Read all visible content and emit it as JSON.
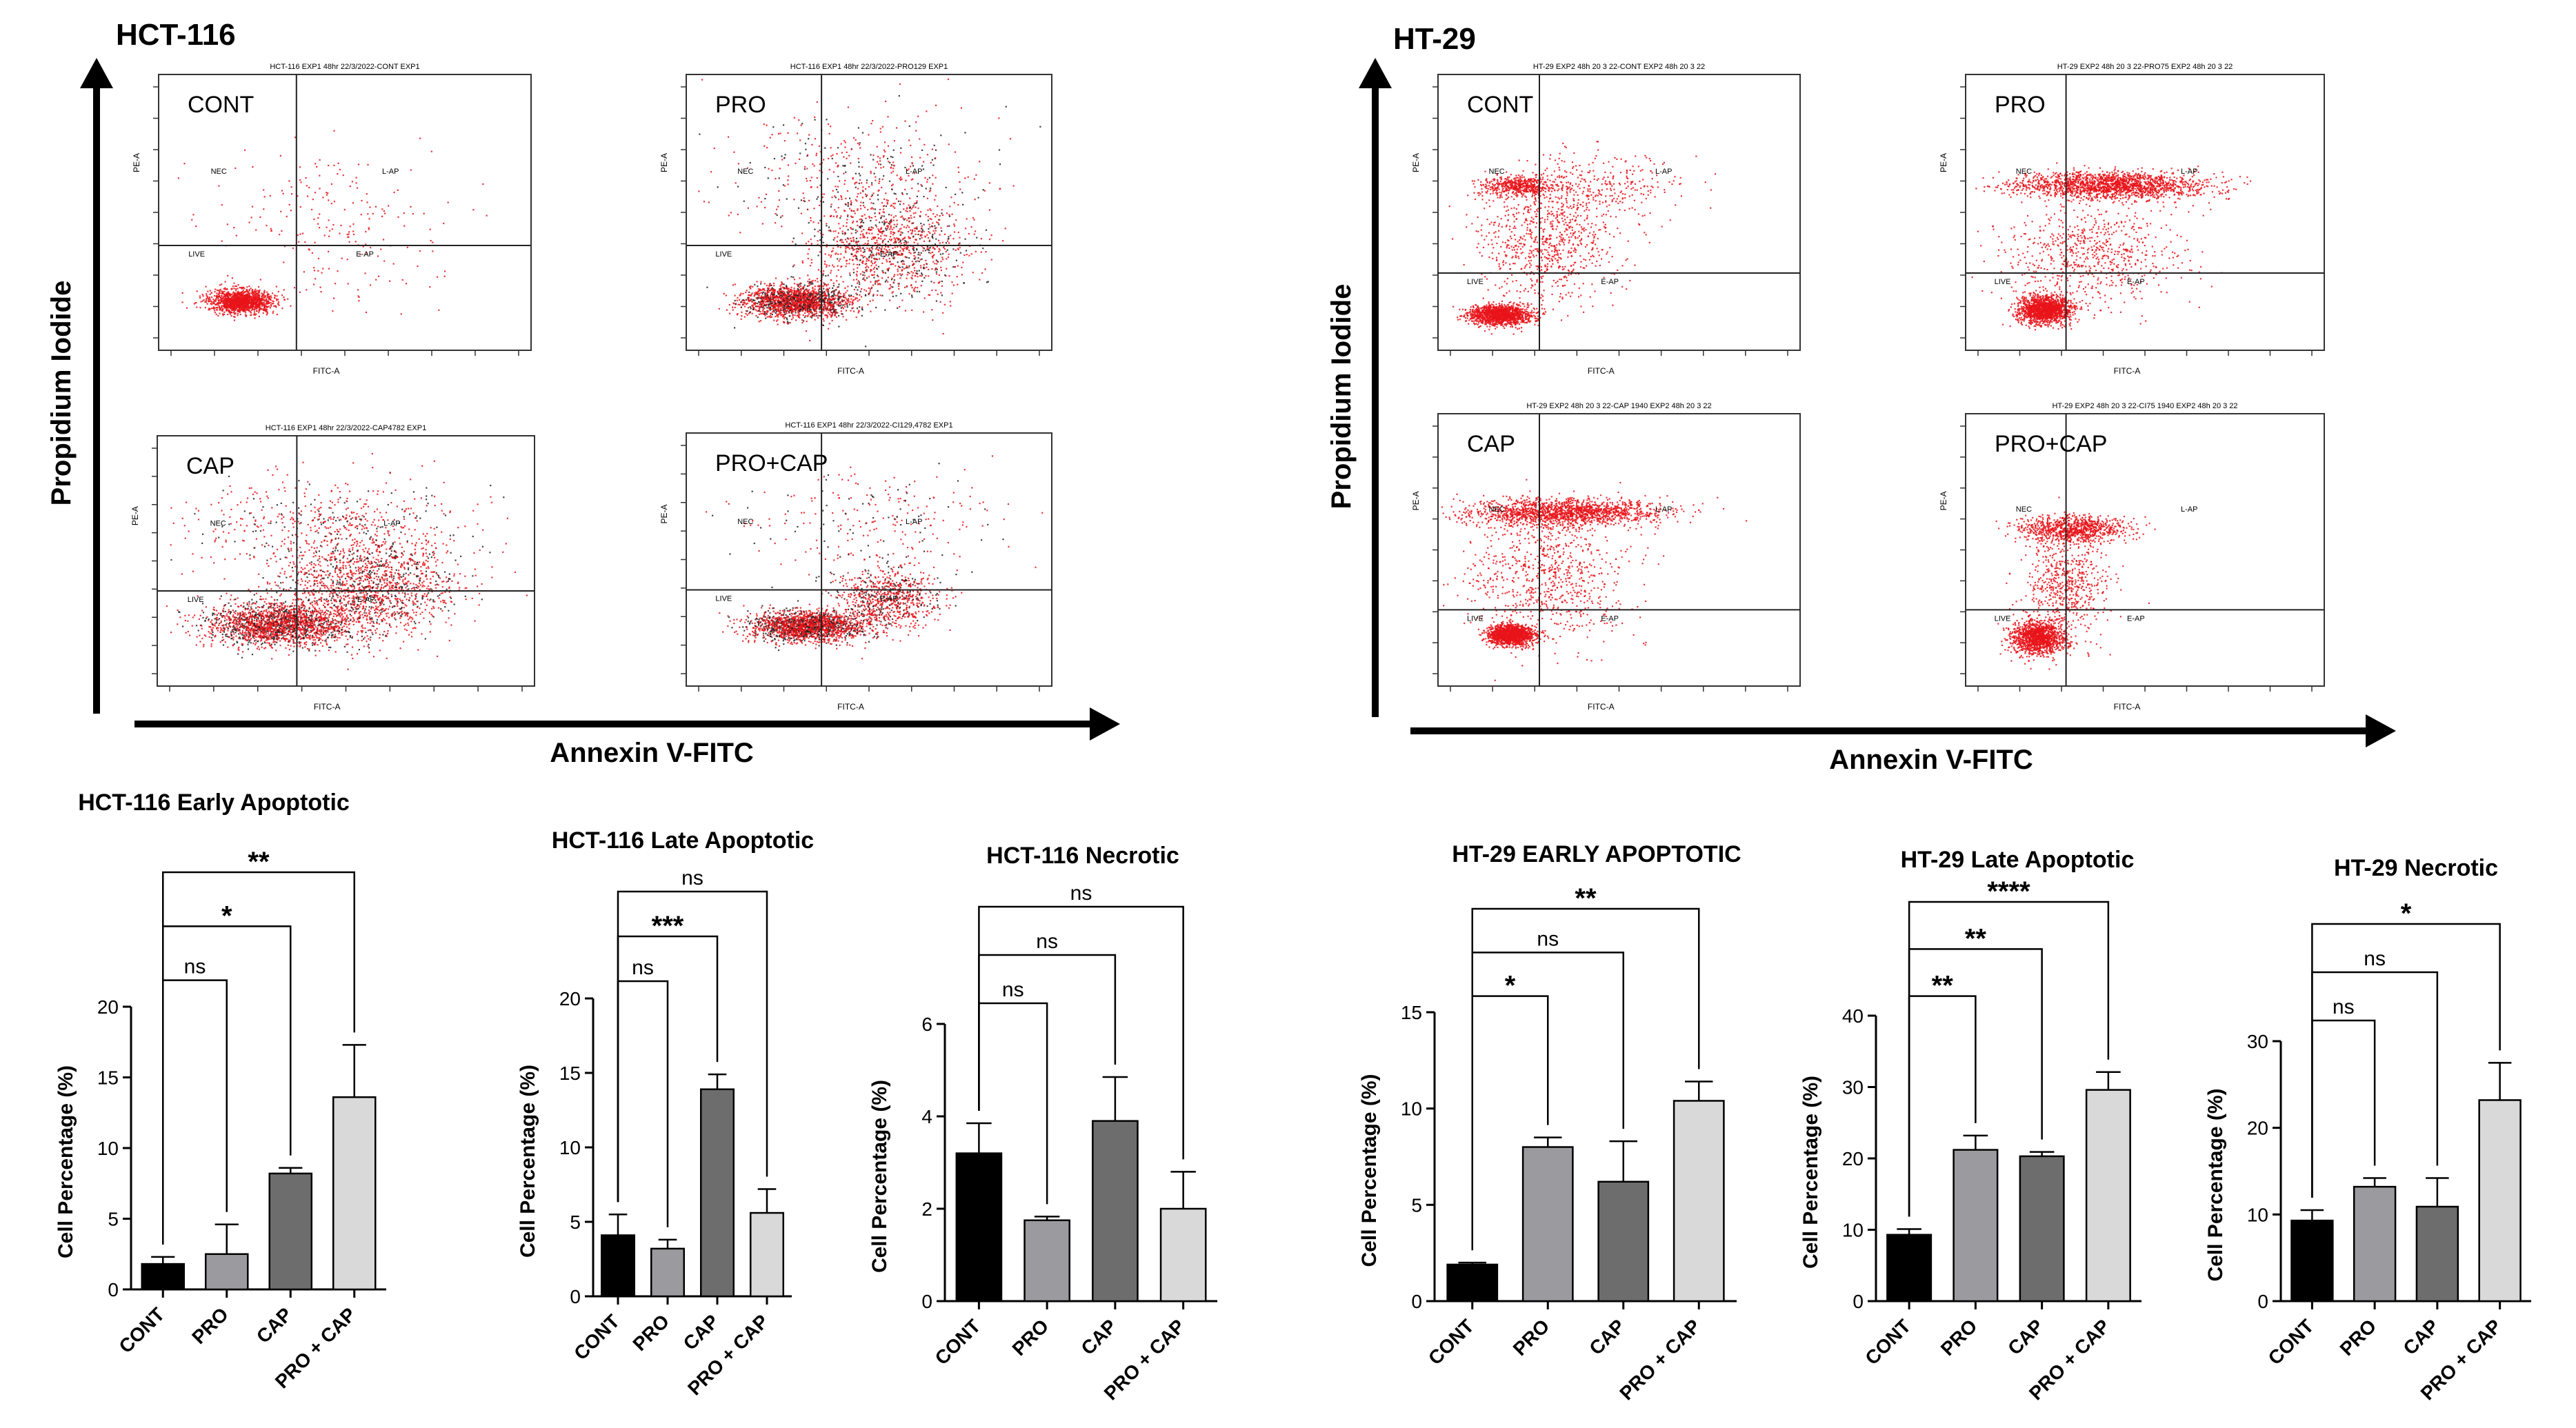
{
  "flow_panels": [
    {
      "cell_line": "HCT-116",
      "y_axis_label": "Propidium Iodide",
      "x_axis_label": "Annexin V-FITC",
      "plots": [
        {
          "label": "CONT",
          "header": "HCT-116 EXP1 48hr 22/3/2022-CONT EXP1",
          "quadrants": [
            "NEC",
            "L-AP",
            "LIVE",
            "E-AP"
          ],
          "x_axis_name": "FITC-A",
          "y_axis_name": "PE-A"
        },
        {
          "label": "PRO",
          "header": "HCT-116 EXP1 48hr 22/3/2022-PRO129 EXP1",
          "quadrants": [
            "NEC",
            "L-AP",
            "LIVE",
            "E-AP"
          ],
          "x_axis_name": "FITC-A",
          "y_axis_name": "PE-A"
        },
        {
          "label": "CAP",
          "header": "HCT-116 EXP1 48hr 22/3/2022-CAP4782 EXP1",
          "quadrants": [
            "NEC",
            "L-AP",
            "LIVE",
            "E-AP"
          ],
          "x_axis_name": "FITC-A",
          "y_axis_name": "PE-A"
        },
        {
          "label": "PRO+CAP",
          "header": "HCT-116 EXP1 48hr 22/3/2022-CI129,4782 EXP1",
          "quadrants": [
            "NEC",
            "L-AP",
            "LIVE",
            "E-AP"
          ],
          "x_axis_name": "FITC-A",
          "y_axis_name": "PE-A"
        }
      ]
    },
    {
      "cell_line": "HT-29",
      "y_axis_label": "Propidium Iodide",
      "x_axis_label": "Annexin V-FITC",
      "plots": [
        {
          "label": "CONT",
          "header": "HT-29 EXP2 48h 20 3 22-CONT EXP2 48h 20 3 22",
          "quadrants": [
            "NEC",
            "L-AP",
            "LIVE",
            "E-AP"
          ],
          "x_axis_name": "FITC-A",
          "y_axis_name": "PE-A"
        },
        {
          "label": "PRO",
          "header": "HT-29 EXP2 48h 20 3 22-PRO75 EXP2 48h 20 3 22",
          "quadrants": [
            "NEC",
            "L-AP",
            "LIVE",
            "E-AP"
          ],
          "x_axis_name": "FITC-A",
          "y_axis_name": "PE-A"
        },
        {
          "label": "CAP",
          "header": "HT-29 EXP2 48h 20 3 22-CAP 1940 EXP2 48h 20 3 22",
          "quadrants": [
            "NEC",
            "L-AP",
            "LIVE",
            "E-AP"
          ],
          "x_axis_name": "FITC-A",
          "y_axis_name": "PE-A"
        },
        {
          "label": "PRO+CAP",
          "header": "HT-29 EXP2 48h 20 3 22-CI75 1940 EXP2 48h 20 3 22",
          "quadrants": [
            "NEC",
            "L-AP",
            "LIVE",
            "E-AP"
          ],
          "x_axis_name": "FITC-A",
          "y_axis_name": "PE-A"
        }
      ]
    }
  ],
  "colors": {
    "dots": "#e8141a",
    "dots_dark": "#222222",
    "bar_cont": "#000000",
    "bar_pro": "#9b9b9f",
    "bar_cap": "#6d6d6d",
    "bar_combo": "#d9d9d9"
  },
  "chart_data": [
    {
      "type": "bar",
      "title": "HCT-116 Early Apoptotic",
      "categories": [
        "CONT",
        "PRO",
        "CAP",
        "PRO + CAP"
      ],
      "values": [
        1.8,
        2.5,
        8.2,
        13.6
      ],
      "errors": [
        0.5,
        2.1,
        0.4,
        3.7
      ],
      "ylabel": "Cell Percentage (%)",
      "ylim": [
        0,
        20
      ],
      "yticks": [
        0,
        5,
        10,
        15,
        20
      ],
      "significance": [
        {
          "from": 0,
          "to": 1,
          "label": "ns"
        },
        {
          "from": 0,
          "to": 2,
          "label": "*"
        },
        {
          "from": 0,
          "to": 3,
          "label": "**"
        }
      ]
    },
    {
      "type": "bar",
      "title": "HCT-116 Late Apoptotic",
      "categories": [
        "CONT",
        "PRO",
        "CAP",
        "PRO + CAP"
      ],
      "values": [
        4.1,
        3.2,
        13.9,
        5.6
      ],
      "errors": [
        1.4,
        0.6,
        1.0,
        1.6
      ],
      "ylabel": "Cell Percentage (%)",
      "ylim": [
        0,
        20
      ],
      "yticks": [
        0,
        5,
        10,
        15,
        20
      ],
      "significance": [
        {
          "from": 0,
          "to": 1,
          "label": "ns"
        },
        {
          "from": 0,
          "to": 2,
          "label": "***"
        },
        {
          "from": 0,
          "to": 3,
          "label": "ns"
        }
      ]
    },
    {
      "type": "bar",
      "title": "HCT-116 Necrotic",
      "categories": [
        "CONT",
        "PRO",
        "CAP",
        "PRO + CAP"
      ],
      "values": [
        3.2,
        1.75,
        3.9,
        2.0
      ],
      "errors": [
        0.65,
        0.08,
        0.95,
        0.8
      ],
      "ylabel": "Cell Percentage (%)",
      "ylim": [
        0,
        6
      ],
      "yticks": [
        0,
        2,
        4,
        6
      ],
      "significance": [
        {
          "from": 0,
          "to": 1,
          "label": "ns"
        },
        {
          "from": 0,
          "to": 2,
          "label": "ns"
        },
        {
          "from": 0,
          "to": 3,
          "label": "ns"
        }
      ]
    },
    {
      "type": "bar",
      "title": "HT-29 EARLY APOPTOTIC",
      "categories": [
        "CONT",
        "PRO",
        "CAP",
        "PRO + CAP"
      ],
      "values": [
        1.9,
        8.0,
        6.2,
        10.4
      ],
      "errors": [
        0.1,
        0.5,
        2.1,
        1.0
      ],
      "ylabel": "Cell Percentage (%)",
      "ylim": [
        0,
        15
      ],
      "yticks": [
        0,
        5,
        10,
        15
      ],
      "significance": [
        {
          "from": 0,
          "to": 1,
          "label": "*"
        },
        {
          "from": 0,
          "to": 2,
          "label": "ns"
        },
        {
          "from": 0,
          "to": 3,
          "label": "**"
        }
      ]
    },
    {
      "type": "bar",
      "title": "HT-29 Late Apoptotic",
      "categories": [
        "CONT",
        "PRO",
        "CAP",
        "PRO + CAP"
      ],
      "values": [
        9.3,
        21.2,
        20.3,
        29.6
      ],
      "errors": [
        0.8,
        2.0,
        0.6,
        2.5
      ],
      "ylabel": "Cell Percentage (%)",
      "ylim": [
        0,
        40
      ],
      "yticks": [
        0,
        10,
        20,
        30,
        40
      ],
      "significance": [
        {
          "from": 0,
          "to": 1,
          "label": "**"
        },
        {
          "from": 0,
          "to": 2,
          "label": "**"
        },
        {
          "from": 0,
          "to": 3,
          "label": "****"
        }
      ]
    },
    {
      "type": "bar",
      "title": "HT-29 Necrotic",
      "categories": [
        "CONT",
        "PRO",
        "CAP",
        "PRO + CAP"
      ],
      "values": [
        9.3,
        13.2,
        10.9,
        23.2
      ],
      "errors": [
        1.2,
        1.0,
        3.3,
        4.3
      ],
      "ylabel": "Cell Percentage (%)",
      "ylim": [
        0,
        30
      ],
      "yticks": [
        0,
        10,
        20,
        30
      ],
      "significance": [
        {
          "from": 0,
          "to": 1,
          "label": "ns"
        },
        {
          "from": 0,
          "to": 2,
          "label": "ns"
        },
        {
          "from": 0,
          "to": 3,
          "label": "*"
        }
      ]
    }
  ]
}
